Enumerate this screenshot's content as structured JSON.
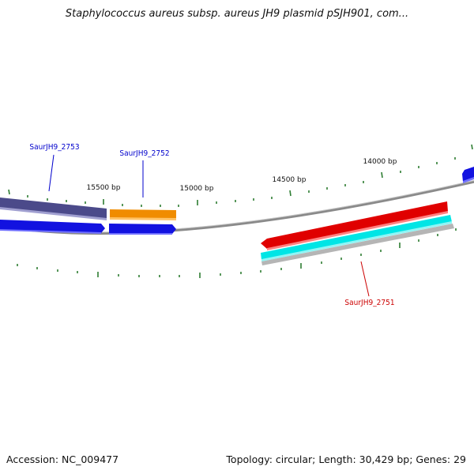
{
  "title": "Staphylococcus aureus subsp. aureus JH9 plasmid pSJH901, com...",
  "footer": {
    "accession": "Accession: NC_009477",
    "summary": "Topology: circular; Length: 30,429 bp; Genes: 29"
  },
  "scale_labels": [
    "15500 bp",
    "15000 bp",
    "14500 bp",
    "14000 bp"
  ],
  "genes": [
    {
      "name": "SaurJH9_2753",
      "color": "#0000cc"
    },
    {
      "name": "SaurJH9_2752",
      "color": "#0000cc"
    },
    {
      "name": "SaurJH9_2751",
      "color": "#cc0000"
    }
  ],
  "colors": {
    "backbone": "#808080",
    "tick": "#2e7d32",
    "purple_track": "#4b4a8a",
    "blue_track": "#1010e0",
    "orange_track": "#f08c00",
    "red_track": "#e00000",
    "cyan_track": "#00e5e5"
  }
}
